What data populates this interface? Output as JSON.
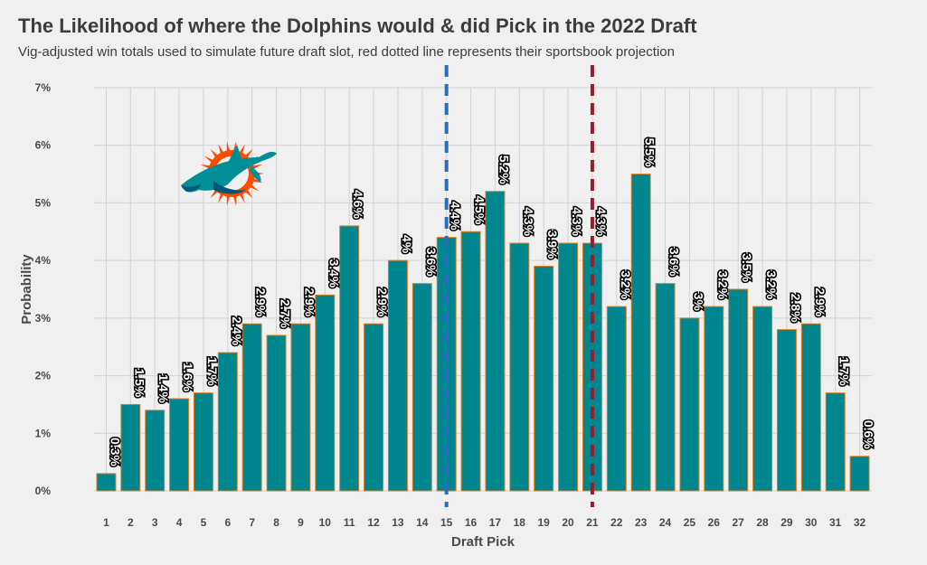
{
  "title": "The Likelihood of where the Dolphins would & did Pick in the 2022 Draft",
  "subtitle": "Vig-adjusted win totals used to simulate future draft slot, red dotted line represents their sportsbook projection",
  "logo": {
    "name": "miami-dolphins-logo",
    "colors": {
      "aqua": "#008e97",
      "orange": "#fc4c02",
      "dark": "#005778"
    }
  },
  "chart_data": {
    "type": "bar",
    "xlabel": "Draft Pick",
    "ylabel": "Probability",
    "ylim": [
      0,
      7
    ],
    "yticks": [
      0,
      1,
      2,
      3,
      4,
      5,
      6,
      7
    ],
    "ytick_labels": [
      "0%",
      "1%",
      "2%",
      "3%",
      "4%",
      "5%",
      "6%",
      "7%"
    ],
    "categories": [
      "1",
      "2",
      "3",
      "4",
      "5",
      "6",
      "7",
      "8",
      "9",
      "10",
      "11",
      "12",
      "13",
      "14",
      "15",
      "16",
      "17",
      "18",
      "19",
      "20",
      "21",
      "22",
      "23",
      "24",
      "25",
      "26",
      "27",
      "28",
      "29",
      "30",
      "31",
      "32"
    ],
    "values": [
      0.3,
      1.5,
      1.4,
      1.6,
      1.7,
      2.4,
      2.9,
      2.7,
      2.9,
      3.4,
      4.6,
      2.9,
      4.0,
      3.6,
      4.4,
      4.5,
      5.2,
      4.3,
      3.9,
      4.3,
      4.3,
      3.2,
      5.5,
      3.6,
      3.0,
      3.2,
      3.5,
      3.2,
      2.8,
      2.9,
      1.7,
      0.6
    ],
    "value_labels": [
      "0.3%",
      "1.5%",
      "1.4%",
      "1.6%",
      "1.7%",
      "2.4%",
      "2.9%",
      "2.7%",
      "2.9%",
      "3.4%",
      "4.6%",
      "2.9%",
      "4%",
      "3.6%",
      "4.4%",
      "4.5%",
      "5.2%",
      "4.3%",
      "3.9%",
      "4.3%",
      "4.3%",
      "3.2%",
      "5.5%",
      "3.6%",
      "3%",
      "3.2%",
      "3.5%",
      "3.2%",
      "2.8%",
      "2.9%",
      "1.7%",
      "0.6%"
    ],
    "bar_color": "#00868f",
    "bar_edge_color": "#e07b1a",
    "grid": true,
    "reference_lines": [
      {
        "x": 15,
        "color": "#2a6ebb",
        "style": "dashed"
      },
      {
        "x": 21,
        "color": "#9b1b2b",
        "style": "dashed"
      }
    ]
  }
}
